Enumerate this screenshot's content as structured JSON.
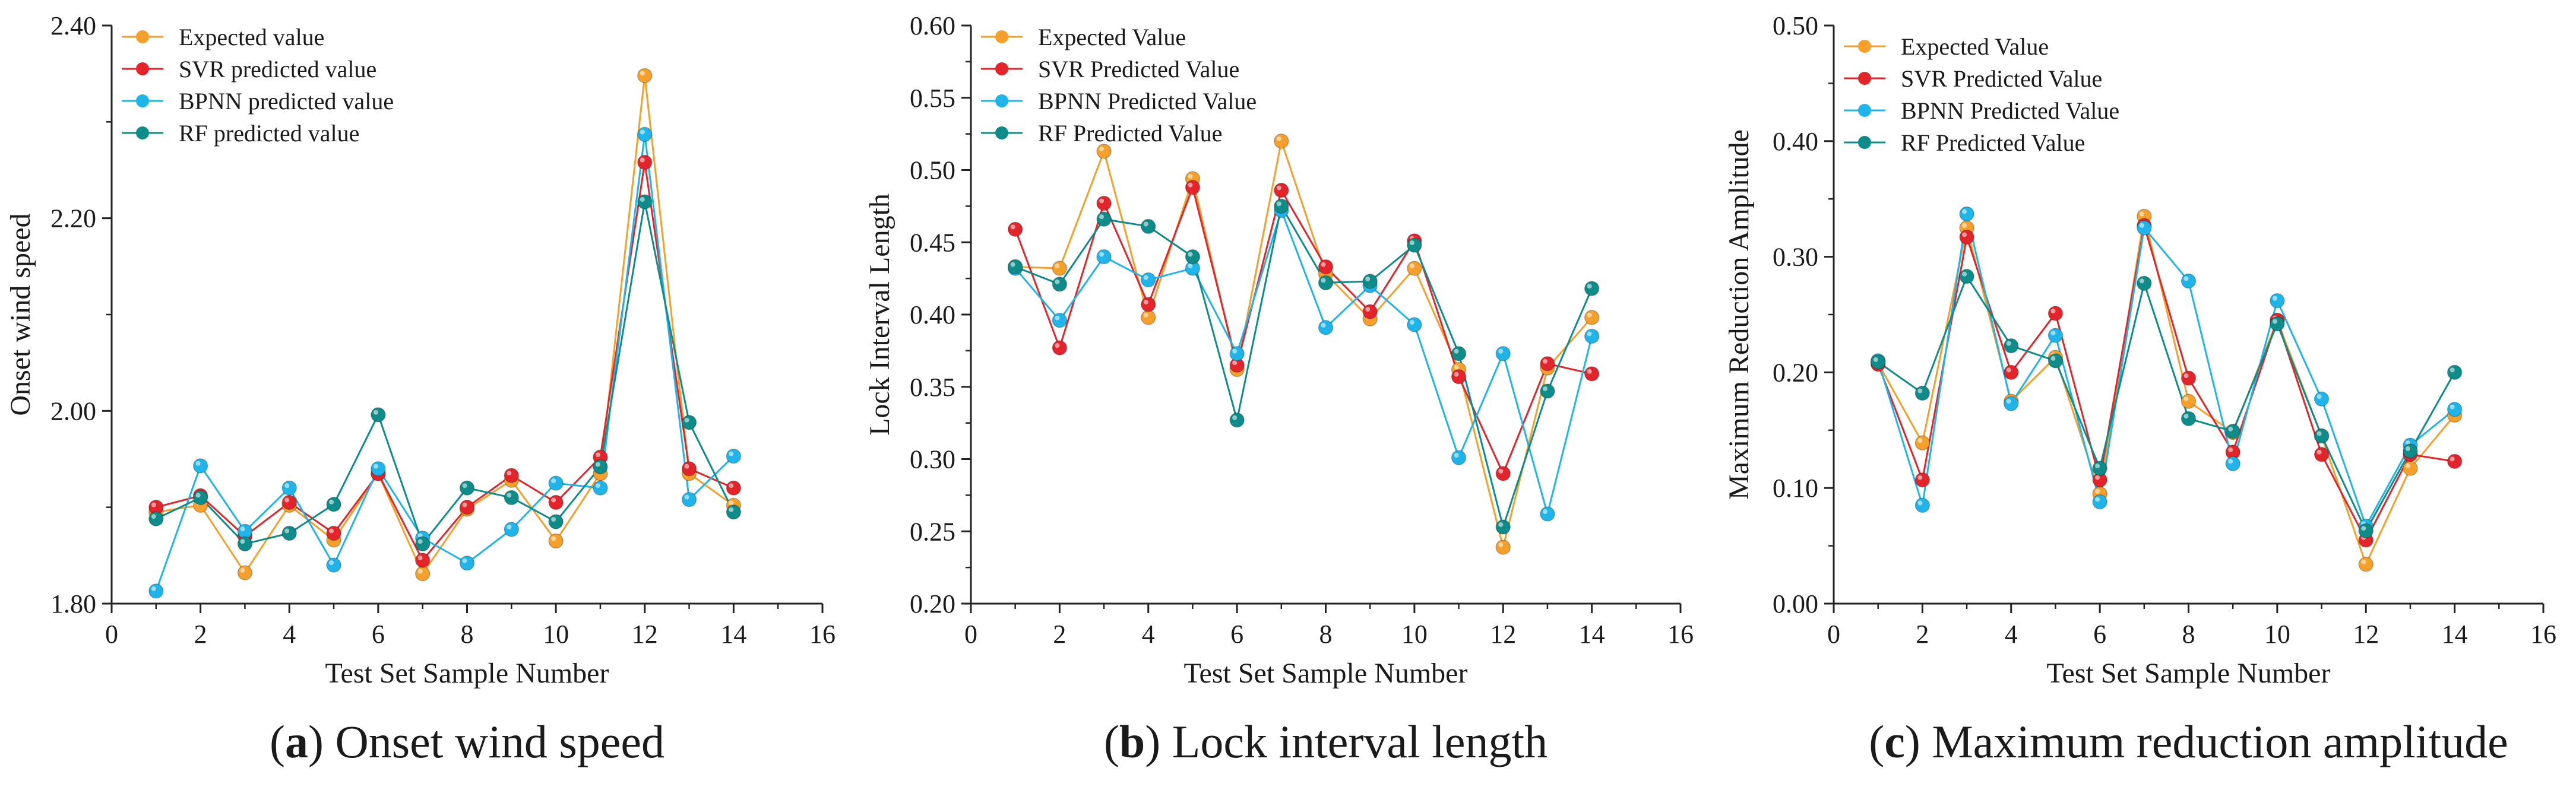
{
  "figure": {
    "series_colors": [
      "#F5A02A",
      "#E3242B",
      "#1FB5EA",
      "#0E8C8A"
    ]
  },
  "chart_data": [
    {
      "type": "line",
      "title": "",
      "caption": {
        "letter": "a",
        "text": " Onset wind speed"
      },
      "xlabel": "Test Set Sample Number",
      "ylabel": "Onset wind speed",
      "xlim": [
        0,
        16
      ],
      "ylim": [
        1.8,
        2.4
      ],
      "xticks": [
        0,
        2,
        4,
        6,
        8,
        10,
        12,
        14,
        16
      ],
      "xtick_labels": [
        "0",
        "2",
        "4",
        "6",
        "8",
        "10",
        "12",
        "14",
        "16"
      ],
      "yticks": [
        1.8,
        2.0,
        2.2,
        2.4
      ],
      "ytick_labels": [
        "1.80",
        "2.00",
        "2.20",
        "2.40"
      ],
      "grid": false,
      "legend_position": "top-left",
      "x": [
        1,
        2,
        3,
        4,
        5,
        6,
        7,
        8,
        9,
        10,
        11,
        12,
        13,
        14
      ],
      "series": [
        {
          "name": "Expected value",
          "values": [
            1.895,
            1.902,
            1.832,
            1.902,
            1.866,
            1.935,
            1.831,
            1.898,
            1.928,
            1.865,
            1.935,
            2.348,
            1.935,
            1.902
          ]
        },
        {
          "name": "SVR predicted value",
          "values": [
            1.9,
            1.912,
            1.87,
            1.905,
            1.873,
            1.935,
            1.845,
            1.9,
            1.933,
            1.905,
            1.952,
            2.258,
            1.94,
            1.92
          ]
        },
        {
          "name": "BPNN predicted value",
          "values": [
            1.813,
            1.943,
            1.875,
            1.92,
            1.84,
            1.94,
            1.868,
            1.842,
            1.877,
            1.925,
            1.92,
            2.287,
            1.908,
            1.953
          ]
        },
        {
          "name": "RF predicted value",
          "values": [
            1.888,
            1.91,
            1.862,
            1.873,
            1.903,
            1.996,
            1.862,
            1.92,
            1.91,
            1.885,
            1.942,
            2.217,
            1.988,
            1.895
          ]
        }
      ]
    },
    {
      "type": "line",
      "title": "",
      "caption": {
        "letter": "b",
        "text": " Lock interval length"
      },
      "xlabel": "Test Set Sample Number",
      "ylabel": "Lock Interval Length",
      "xlim": [
        0,
        16
      ],
      "ylim": [
        0.2,
        0.6
      ],
      "xticks": [
        0,
        2,
        4,
        6,
        8,
        10,
        12,
        14,
        16
      ],
      "xtick_labels": [
        "0",
        "2",
        "4",
        "6",
        "8",
        "10",
        "12",
        "14",
        "16"
      ],
      "yticks": [
        0.2,
        0.25,
        0.3,
        0.35,
        0.4,
        0.45,
        0.5,
        0.55,
        0.6
      ],
      "ytick_labels": [
        "0.20",
        "0.25",
        "0.30",
        "0.35",
        "0.40",
        "0.45",
        "0.50",
        "0.55",
        "0.60"
      ],
      "grid": false,
      "legend_position": "top-left",
      "x": [
        1,
        2,
        3,
        4,
        5,
        6,
        7,
        8,
        9,
        10,
        11,
        12,
        13,
        14
      ],
      "series": [
        {
          "name": "Expected Value",
          "values": [
            0.433,
            0.432,
            0.513,
            0.398,
            0.494,
            0.362,
            0.52,
            0.428,
            0.397,
            0.432,
            0.362,
            0.239,
            0.363,
            0.398
          ]
        },
        {
          "name": "SVR Predicted Value",
          "values": [
            0.459,
            0.377,
            0.477,
            0.407,
            0.488,
            0.365,
            0.486,
            0.433,
            0.402,
            0.451,
            0.357,
            0.29,
            0.366,
            0.359
          ]
        },
        {
          "name": "BPNN Predicted Value",
          "values": [
            0.432,
            0.396,
            0.44,
            0.424,
            0.432,
            0.373,
            0.472,
            0.391,
            0.42,
            0.393,
            0.301,
            0.373,
            0.262,
            0.385
          ]
        },
        {
          "name": "RF Predicted Value",
          "values": [
            0.433,
            0.421,
            0.466,
            0.461,
            0.44,
            0.327,
            0.475,
            0.422,
            0.423,
            0.448,
            0.373,
            0.253,
            0.347,
            0.418
          ]
        }
      ]
    },
    {
      "type": "line",
      "title": "",
      "caption": {
        "letter": "c",
        "text": " Maximum reduction amplitude"
      },
      "xlabel": "Test Set Sample Number",
      "ylabel": "Maximum Reduction Amplitude",
      "xlim": [
        0,
        16
      ],
      "ylim": [
        0,
        0.5
      ],
      "xticks": [
        0,
        2,
        4,
        6,
        8,
        10,
        12,
        14,
        16
      ],
      "xtick_labels": [
        "0",
        "2",
        "4",
        "6",
        "8",
        "10",
        "12",
        "14",
        "16"
      ],
      "yticks": [
        0,
        0.1,
        0.2,
        0.3,
        0.4,
        0.5
      ],
      "ytick_labels": [
        "0.00",
        "0.10",
        "0.20",
        "0.30",
        "0.40",
        "0.50"
      ],
      "grid": false,
      "legend_position": "top-left",
      "x": [
        1,
        2,
        3,
        4,
        5,
        6,
        7,
        8,
        9,
        10,
        11,
        12,
        13,
        14
      ],
      "series": [
        {
          "name": "Expected Value",
          "values": [
            0.208,
            0.139,
            0.325,
            0.175,
            0.213,
            0.095,
            0.335,
            0.175,
            0.148,
            0.245,
            0.145,
            0.034,
            0.117,
            0.163
          ]
        },
        {
          "name": "SVR Predicted Value",
          "values": [
            0.207,
            0.107,
            0.317,
            0.2,
            0.251,
            0.107,
            0.327,
            0.195,
            0.131,
            0.245,
            0.129,
            0.055,
            0.129,
            0.123
          ]
        },
        {
          "name": "BPNN Predicted Value",
          "values": [
            0.21,
            0.085,
            0.337,
            0.173,
            0.232,
            0.088,
            0.325,
            0.279,
            0.121,
            0.262,
            0.177,
            0.067,
            0.137,
            0.168
          ]
        },
        {
          "name": "RF Predicted Value",
          "values": [
            0.209,
            0.182,
            0.283,
            0.223,
            0.21,
            0.117,
            0.277,
            0.16,
            0.149,
            0.242,
            0.145,
            0.063,
            0.132,
            0.2
          ]
        }
      ]
    }
  ]
}
